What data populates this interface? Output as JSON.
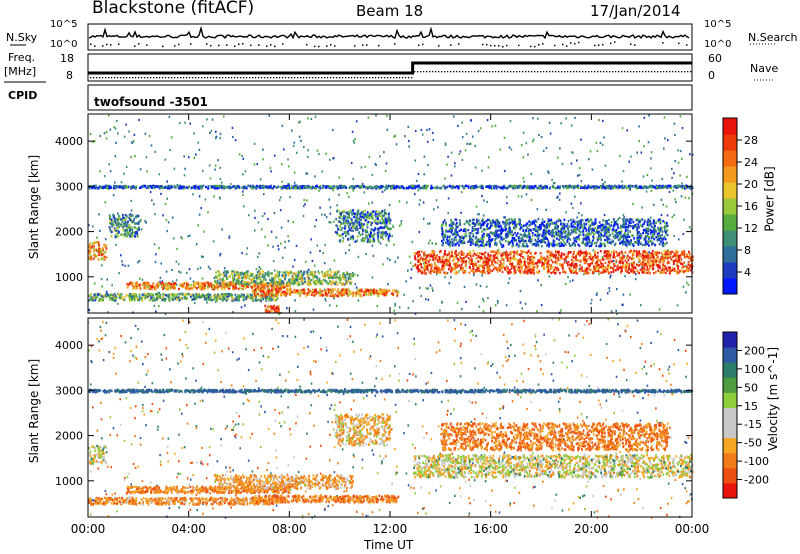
{
  "header": {
    "station": "Blackstone (fitACF)",
    "beam": "Beam 18",
    "date": "17/Jan/2014"
  },
  "top_panels": {
    "nsky_label": "N.Sky",
    "nsearch_label": "N.Search",
    "nsky_ticks": [
      "10^5",
      "10^0"
    ],
    "nsearch_ticks": [
      "10^5",
      "10^0"
    ],
    "freq_label": "Freq.",
    "freq_unit": "[MHz]",
    "freq_ticks": [
      "18",
      "8"
    ],
    "nave_label": "Nave",
    "nave_ticks": [
      "60",
      "0"
    ],
    "cpid_label": "CPID",
    "cpid_value": "twofsound -3501"
  },
  "colors": {
    "power_scale": [
      "#0018ff",
      "#1e3cbe",
      "#2e6e98",
      "#3d8f77",
      "#56ad3e",
      "#9cc93c",
      "#e9c42b",
      "#f39a1f",
      "#f26a12",
      "#ec3a0b",
      "#e8140a"
    ],
    "velocity_scale": [
      "#2222aa",
      "#2d5aa3",
      "#2e7d6b",
      "#4f9d3f",
      "#8ece3c",
      "#c8c8c8",
      "#c8c8c8",
      "#f5a623",
      "#f07c1a",
      "#ee5012",
      "#e8140a"
    ]
  },
  "chart_data": [
    {
      "type": "heatmap",
      "title": "",
      "quantity": "Power [dB]",
      "xlabel": "Time UT",
      "ylabel": "Slant Range [km]",
      "x_ticks": [
        "00:00",
        "04:00",
        "08:00",
        "12:00",
        "16:00",
        "20:00",
        "00:00"
      ],
      "y_ticks": [
        1000,
        2000,
        3000,
        4000
      ],
      "ylim": [
        200,
        4600
      ],
      "xlim_hours": [
        0,
        24
      ],
      "colorbar_ticks": [
        4,
        8,
        12,
        16,
        20,
        24,
        28
      ],
      "colorbar_range": [
        0,
        32
      ],
      "bands": [
        {
          "t": [
            0,
            0.7
          ],
          "range": [
            1400,
            1800
          ],
          "value": 22
        },
        {
          "t": [
            0.8,
            2.0
          ],
          "range": [
            1900,
            2400
          ],
          "value": 10
        },
        {
          "t": [
            0,
            7.5
          ],
          "range": [
            500,
            650
          ],
          "value": 12
        },
        {
          "t": [
            1.5,
            8.0
          ],
          "range": [
            750,
            900
          ],
          "value": 24
        },
        {
          "t": [
            5.0,
            10.5
          ],
          "range": [
            850,
            1150
          ],
          "value": 14
        },
        {
          "t": [
            6.5,
            12.3
          ],
          "range": [
            600,
            750
          ],
          "value": 24
        },
        {
          "t": [
            7.0,
            7.6
          ],
          "range": [
            250,
            400
          ],
          "value": 28
        },
        {
          "t": [
            9.8,
            12.0
          ],
          "range": [
            1800,
            2500
          ],
          "value": 8
        },
        {
          "t": [
            12.9,
            24.0
          ],
          "range": [
            1100,
            1600
          ],
          "value": 27
        },
        {
          "t": [
            14.0,
            23.0
          ],
          "range": [
            1700,
            2300
          ],
          "value": 6
        },
        {
          "t": [
            0,
            24
          ],
          "range": [
            2980,
            3040
          ],
          "value": 6
        }
      ]
    },
    {
      "type": "heatmap",
      "title": "",
      "quantity": "Velocity [m s^-1]",
      "xlabel": "Time UT",
      "ylabel": "Slant Range [km]",
      "x_ticks": [
        "00:00",
        "04:00",
        "08:00",
        "12:00",
        "16:00",
        "20:00",
        "00:00"
      ],
      "y_ticks": [
        1000,
        2000,
        3000,
        4000
      ],
      "ylim": [
        200,
        4600
      ],
      "xlim_hours": [
        0,
        24
      ],
      "colorbar_ticks": [
        200,
        100,
        50,
        15,
        -15,
        -50,
        -100,
        -200
      ],
      "colorbar_range": [
        -250,
        250
      ],
      "bands": [
        {
          "t": [
            0,
            0.7
          ],
          "range": [
            1400,
            1800
          ],
          "value": 0
        },
        {
          "t": [
            0,
            7.5
          ],
          "range": [
            500,
            650
          ],
          "value": -60
        },
        {
          "t": [
            1.5,
            8.0
          ],
          "range": [
            750,
            900
          ],
          "value": -70
        },
        {
          "t": [
            5.0,
            10.5
          ],
          "range": [
            850,
            1150
          ],
          "value": -40
        },
        {
          "t": [
            6.5,
            12.3
          ],
          "range": [
            550,
            700
          ],
          "value": -80
        },
        {
          "t": [
            9.8,
            12.0
          ],
          "range": [
            1800,
            2500
          ],
          "value": -30
        },
        {
          "t": [
            12.9,
            24.0
          ],
          "range": [
            1100,
            1600
          ],
          "value": 0
        },
        {
          "t": [
            14.0,
            23.0
          ],
          "range": [
            1700,
            2300
          ],
          "value": -80
        },
        {
          "t": [
            0,
            24
          ],
          "range": [
            2980,
            3040
          ],
          "value": 120
        }
      ]
    }
  ]
}
